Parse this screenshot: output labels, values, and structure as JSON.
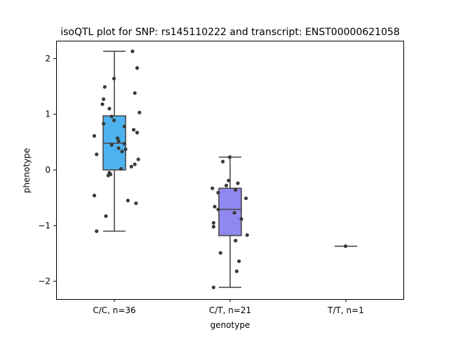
{
  "chart_data": {
    "type": "box",
    "title": "isoQTL plot for SNP: rs145110222 and transcript: ENST00000621058",
    "xlabel": "genotype",
    "ylabel": "phenotype",
    "ylim": [
      -2.32,
      2.32
    ],
    "yticks": [
      -2,
      -1,
      0,
      1,
      2
    ],
    "ytick_labels": [
      "−2",
      "−1",
      "0",
      "1",
      "2"
    ],
    "categories": [
      "C/C, n=36",
      "C/T, n=21",
      "T/T, n=1"
    ],
    "colors": [
      "#4db3f0",
      "#9088f0",
      "#9088f0"
    ],
    "boxes": [
      {
        "category": "C/C, n=36",
        "whisker_low": -1.1,
        "q1": 0.0,
        "median": 0.48,
        "q3": 0.97,
        "whisker_high": 2.13
      },
      {
        "category": "C/T, n=21",
        "whisker_low": -2.11,
        "q1": -1.18,
        "median": -0.71,
        "q3": -0.33,
        "whisker_high": 0.23
      },
      {
        "category": "T/T, n=1",
        "whisker_low": -1.37,
        "q1": -1.37,
        "median": -1.37,
        "q3": -1.37,
        "whisker_high": -1.37
      }
    ],
    "points": [
      [
        [
          0.16,
          2.13
        ],
        [
          0.2,
          1.83
        ],
        [
          0.0,
          1.64
        ],
        [
          0.18,
          1.38
        ],
        [
          -0.08,
          1.49
        ],
        [
          -0.09,
          1.27
        ],
        [
          -0.1,
          1.18
        ],
        [
          -0.04,
          1.1
        ],
        [
          0.22,
          1.03
        ],
        [
          -0.02,
          0.96
        ],
        [
          0.0,
          0.89
        ],
        [
          -0.09,
          0.83
        ],
        [
          0.09,
          0.78
        ],
        [
          0.17,
          0.72
        ],
        [
          0.2,
          0.67
        ],
        [
          -0.17,
          0.61
        ],
        [
          0.03,
          0.57
        ],
        [
          0.04,
          0.52
        ],
        [
          0.09,
          0.47
        ],
        [
          -0.02,
          0.45
        ],
        [
          0.04,
          0.39
        ],
        [
          0.1,
          0.37
        ],
        [
          0.07,
          0.33
        ],
        [
          -0.15,
          0.28
        ],
        [
          0.21,
          0.19
        ],
        [
          0.18,
          0.1
        ],
        [
          0.15,
          0.06
        ],
        [
          0.06,
          0.02
        ],
        [
          -0.04,
          -0.05
        ],
        [
          -0.03,
          -0.08
        ],
        [
          -0.05,
          -0.1
        ],
        [
          -0.17,
          -0.46
        ],
        [
          0.12,
          -0.55
        ],
        [
          0.19,
          -0.6
        ],
        [
          -0.07,
          -0.83
        ],
        [
          -0.15,
          -1.1
        ]
      ],
      [
        [
          1.0,
          0.23
        ],
        [
          0.94,
          0.15
        ],
        [
          0.99,
          -0.19
        ],
        [
          1.07,
          -0.24
        ],
        [
          0.97,
          -0.28
        ],
        [
          0.85,
          -0.33
        ],
        [
          1.05,
          -0.36
        ],
        [
          0.9,
          -0.41
        ],
        [
          1.14,
          -0.51
        ],
        [
          0.87,
          -0.66
        ],
        [
          0.9,
          -0.71
        ],
        [
          1.04,
          -0.77
        ],
        [
          1.1,
          -0.88
        ],
        [
          0.86,
          -0.95
        ],
        [
          0.86,
          -1.02
        ],
        [
          1.15,
          -1.17
        ],
        [
          1.05,
          -1.27
        ],
        [
          0.92,
          -1.49
        ],
        [
          1.08,
          -1.64
        ],
        [
          1.06,
          -1.82
        ],
        [
          0.86,
          -2.11
        ]
      ],
      [
        [
          2.0,
          -1.37
        ]
      ]
    ]
  }
}
